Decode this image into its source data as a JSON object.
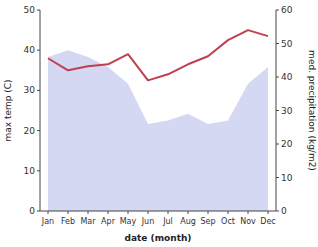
{
  "chart_data": {
    "type": "line",
    "xlabel": "date (month)",
    "ylabel": "max temp (C)",
    "y2label": "med. precipitation (kg/m2)",
    "categories": [
      "Jan",
      "Feb",
      "Mar",
      "Apr",
      "May",
      "Jun",
      "Jul",
      "Aug",
      "Sep",
      "Oct",
      "Nov",
      "Dec"
    ],
    "series": [
      {
        "type": "area",
        "axis": "y2",
        "color": "#b0b8e8",
        "values": [
          46,
          48,
          46,
          43,
          38,
          26,
          27,
          29,
          26,
          27,
          38,
          43
        ]
      },
      {
        "type": "line",
        "color": "#c04050",
        "values": [
          38.0,
          35.0,
          36.0,
          36.5,
          39.0,
          32.5,
          34.0,
          36.5,
          38.5,
          42.5,
          45.0,
          43.5
        ]
      }
    ],
    "ylim": [
      0,
      50
    ],
    "yticks": [
      0,
      10,
      20,
      30,
      40,
      50
    ],
    "y2lim": [
      0,
      60
    ],
    "y2ticks": [
      0,
      10,
      20,
      30,
      40,
      50,
      60
    ],
    "grid": false
  }
}
